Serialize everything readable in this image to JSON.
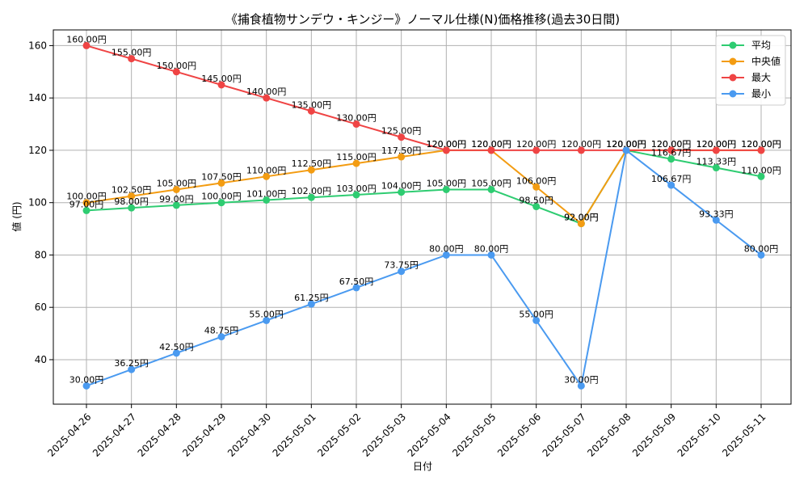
{
  "chart_data": {
    "type": "line",
    "title": "《捕食植物サンデウ・キンジー》ノーマル仕様(N)価格推移(過去30日間)",
    "xlabel": "日付",
    "ylabel": "値 (円)",
    "ylim": [
      23,
      166
    ],
    "yticks": [
      40,
      60,
      80,
      100,
      120,
      140,
      160
    ],
    "grid": true,
    "legend_position": "top-right",
    "value_suffix": "円",
    "categories": [
      "2025-04-26",
      "2025-04-27",
      "2025-04-28",
      "2025-04-29",
      "2025-04-30",
      "2025-05-01",
      "2025-05-02",
      "2025-05-03",
      "2025-05-04",
      "2025-05-05",
      "2025-05-06",
      "2025-05-07",
      "2025-05-08",
      "2025-05-09",
      "2025-05-10",
      "2025-05-11"
    ],
    "series": [
      {
        "name": "平均",
        "color": "#2ecc71",
        "values": [
          97,
          98,
          99,
          100,
          101,
          102,
          103,
          104,
          105,
          105,
          98.5,
          92,
          120,
          116.67,
          113.33,
          110
        ]
      },
      {
        "name": "中央値",
        "color": "#f39c12",
        "values": [
          100,
          102.5,
          105,
          107.5,
          110,
          112.5,
          115,
          117.5,
          120,
          120,
          106,
          92,
          120,
          120,
          120,
          120
        ]
      },
      {
        "name": "最大",
        "color": "#ef4444",
        "values": [
          160,
          155,
          150,
          145,
          140,
          135,
          130,
          125,
          120,
          120,
          120,
          120,
          120,
          120,
          120,
          120
        ]
      },
      {
        "name": "最小",
        "color": "#4a9af0",
        "values": [
          30,
          36.25,
          42.5,
          48.75,
          55,
          61.25,
          67.5,
          73.75,
          80,
          80,
          55,
          30,
          120,
          106.67,
          93.33,
          80
        ]
      }
    ]
  }
}
